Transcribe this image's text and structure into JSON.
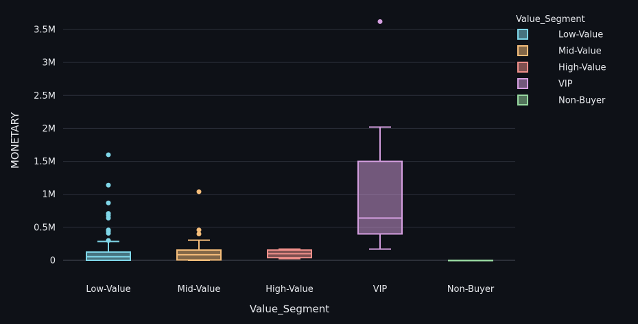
{
  "chart_data": {
    "type": "box",
    "xlabel": "Value_Segment",
    "ylabel": "MONETARY",
    "ylim": [
      -150000,
      3750000
    ],
    "yticks": [
      0,
      500000,
      1000000,
      1500000,
      2000000,
      2500000,
      3000000,
      3500000
    ],
    "ytick_labels": [
      "0",
      "0.5M",
      "1M",
      "1.5M",
      "2M",
      "2.5M",
      "3M",
      "3.5M"
    ],
    "categories": [
      "Low-Value",
      "Mid-Value",
      "High-Value",
      "VIP",
      "Non-Buyer"
    ],
    "grid": true,
    "legend": {
      "title": "Value_Segment",
      "position": "top-right",
      "items": [
        "Low-Value",
        "Mid-Value",
        "High-Value",
        "VIP",
        "Non-Buyer"
      ]
    },
    "series": [
      {
        "name": "Low-Value",
        "color": "#7fd6e8",
        "lower_whisker": 0,
        "q1": 0,
        "median": 55000,
        "q3": 125000,
        "upper_whisker": 285000,
        "outliers": [
          300000,
          410000,
          440000,
          460000,
          640000,
          680000,
          710000,
          870000,
          1140000,
          1600000
        ]
      },
      {
        "name": "Mid-Value",
        "color": "#f5bd7a",
        "lower_whisker": 0,
        "q1": 5000,
        "median": 85000,
        "q3": 155000,
        "upper_whisker": 305000,
        "outliers": [
          400000,
          460000,
          1040000
        ]
      },
      {
        "name": "High-Value",
        "color": "#ef8f8a",
        "lower_whisker": 25000,
        "q1": 40000,
        "median": 100000,
        "q3": 155000,
        "upper_whisker": 170000,
        "outliers": []
      },
      {
        "name": "VIP",
        "color": "#d59fe0",
        "lower_whisker": 170000,
        "q1": 400000,
        "median": 640000,
        "q3": 1500000,
        "upper_whisker": 2020000,
        "outliers": [
          3620000
        ]
      },
      {
        "name": "Non-Buyer",
        "color": "#98d9a1",
        "lower_whisker": 0,
        "q1": 0,
        "median": 0,
        "q3": 0,
        "upper_whisker": 0,
        "outliers": []
      }
    ]
  }
}
